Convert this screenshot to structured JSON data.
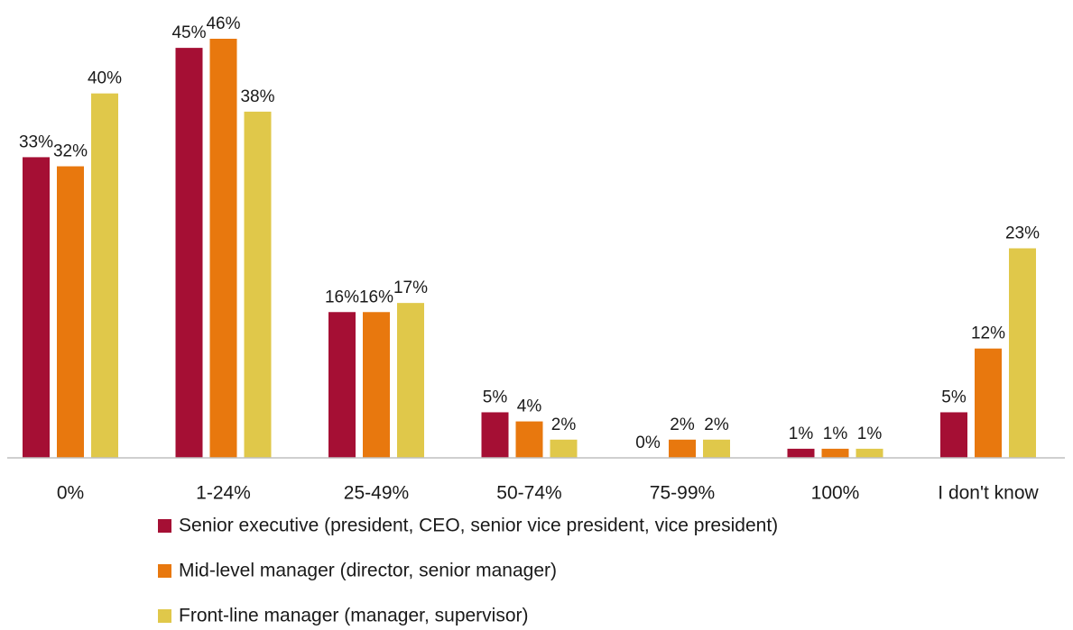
{
  "chart_data": {
    "type": "bar",
    "categories": [
      "0%",
      "1-24%",
      "25-49%",
      "50-74%",
      "75-99%",
      "100%",
      "I don't know"
    ],
    "series": [
      {
        "name": "Senior executive (president, CEO, senior vice president, vice president)",
        "color": "#a50f34",
        "values": [
          33,
          45,
          16,
          5,
          0,
          1,
          5
        ],
        "value_labels": [
          "33%",
          "45%",
          "16%",
          "5%",
          "0%",
          "1%",
          "5%"
        ]
      },
      {
        "name": "Mid-level manager (director, senior manager)",
        "color": "#e8780e",
        "values": [
          32,
          46,
          16,
          4,
          2,
          1,
          12
        ],
        "value_labels": [
          "32%",
          "46%",
          "16%",
          "4%",
          "2%",
          "1%",
          "12%"
        ]
      },
      {
        "name": "Front-line manager (manager, supervisor)",
        "color": "#e0c84a",
        "values": [
          40,
          38,
          17,
          2,
          2,
          1,
          23
        ],
        "value_labels": [
          "40%",
          "38%",
          "17%",
          "2%",
          "2%",
          "1%",
          "23%"
        ]
      }
    ]
  }
}
